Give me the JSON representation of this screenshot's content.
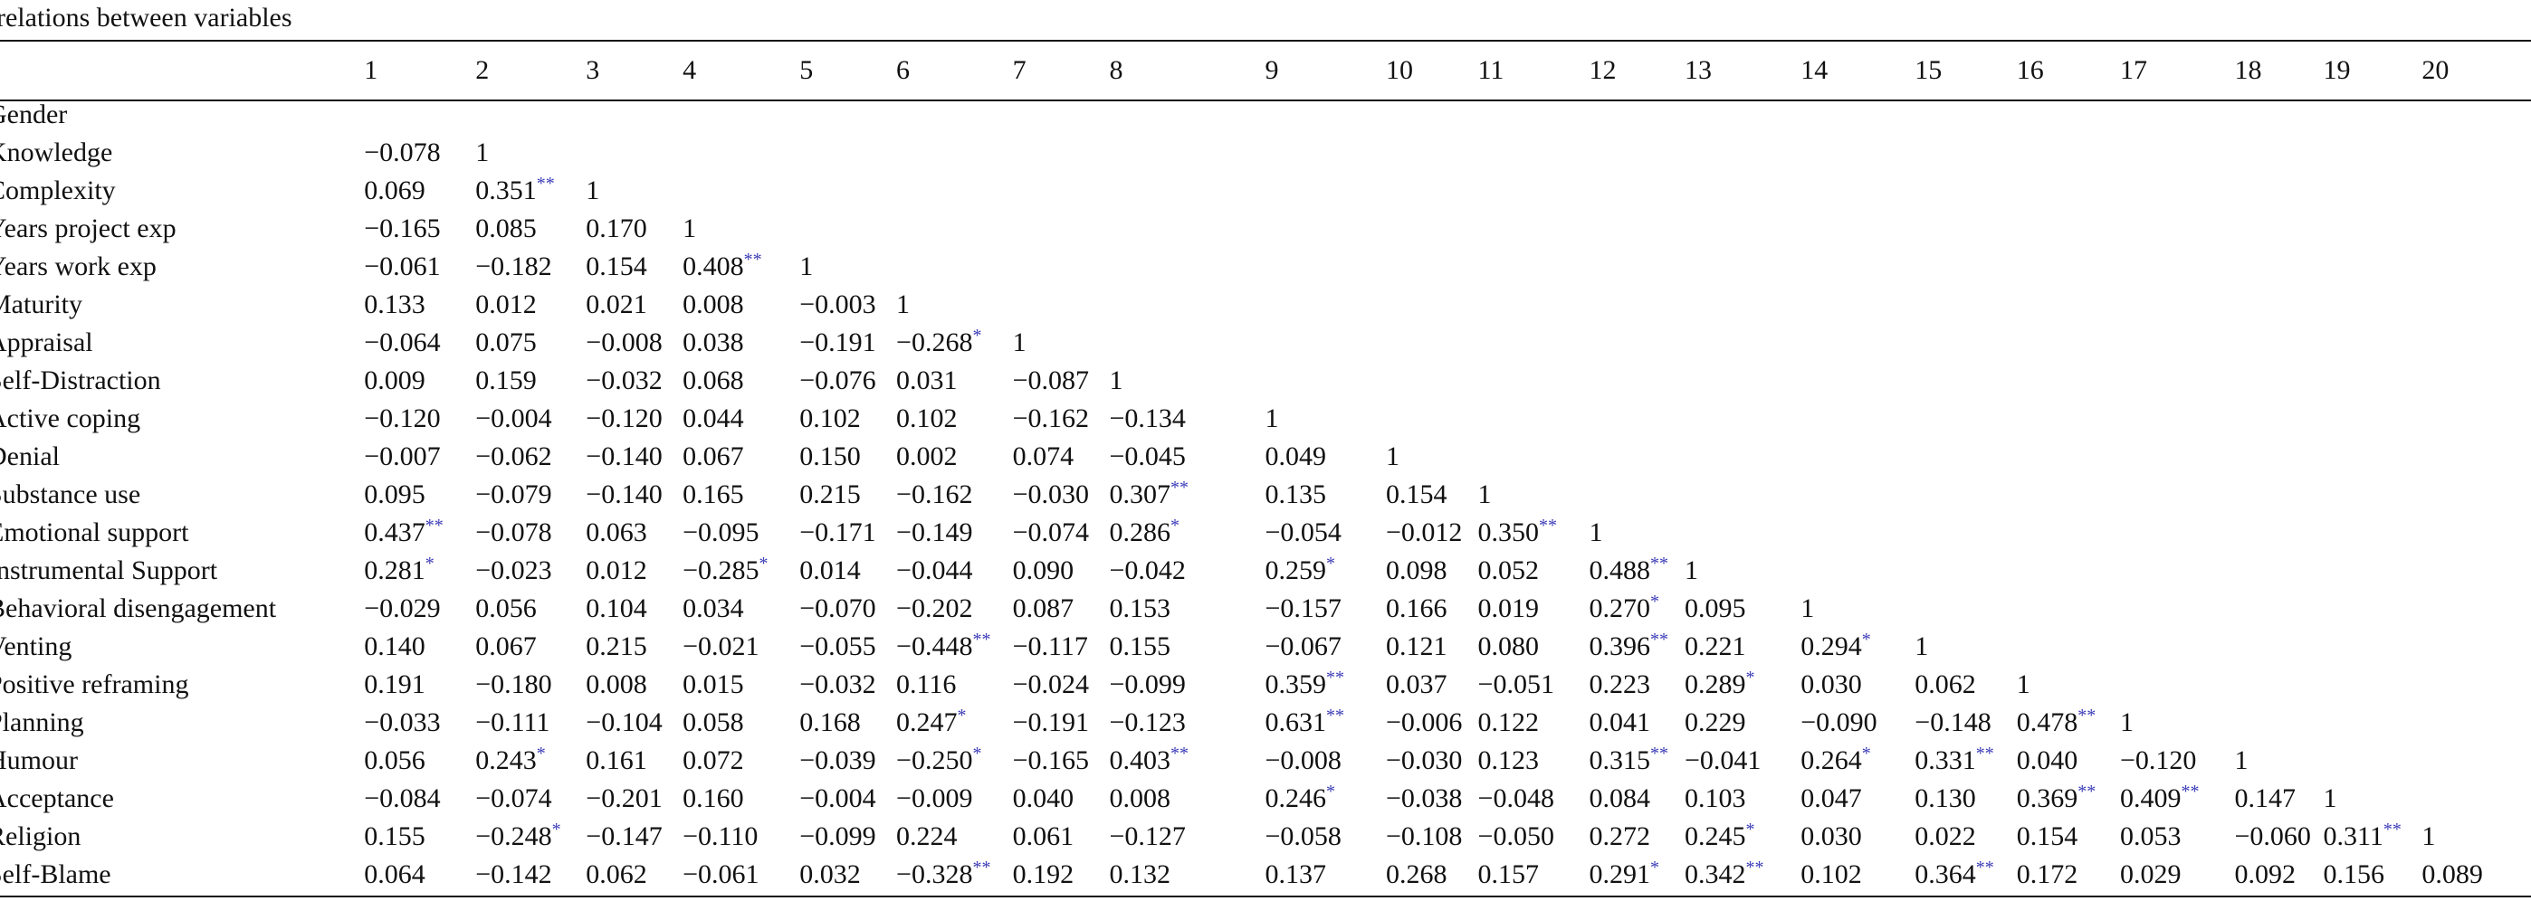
{
  "caption": "relations between variables",
  "columns": [
    "1",
    "2",
    "3",
    "4",
    "5",
    "6",
    "7",
    "8",
    "9",
    "10",
    "11",
    "12",
    "13",
    "14",
    "15",
    "16",
    "17",
    "18",
    "19",
    "20"
  ],
  "rows": [
    {
      "label": "Gender",
      "values": []
    },
    {
      "label": "Knowledge",
      "values": [
        "−0.078",
        "1"
      ]
    },
    {
      "label": "Complexity",
      "values": [
        "0.069",
        "0.351**",
        "1"
      ]
    },
    {
      "label": "Years project exp",
      "values": [
        "−0.165",
        "0.085",
        "0.170",
        "1"
      ]
    },
    {
      "label": "Years work exp",
      "values": [
        "−0.061",
        "−0.182",
        "0.154",
        "0.408**",
        "1"
      ]
    },
    {
      "label": "Maturity",
      "values": [
        "0.133",
        "0.012",
        "0.021",
        "0.008",
        "−0.003",
        "1"
      ]
    },
    {
      "label": "Appraisal",
      "values": [
        "−0.064",
        "0.075",
        "−0.008",
        "0.038",
        "−0.191",
        "−0.268*",
        "1"
      ]
    },
    {
      "label": "Self-Distraction",
      "values": [
        "0.009",
        "0.159",
        "−0.032",
        "0.068",
        "−0.076",
        "0.031",
        "−0.087",
        "1"
      ]
    },
    {
      "label": "Active coping",
      "values": [
        "−0.120",
        "−0.004",
        "−0.120",
        "0.044",
        "0.102",
        "0.102",
        "−0.162",
        "−0.134",
        "1"
      ]
    },
    {
      "label": "Denial",
      "values": [
        "−0.007",
        "−0.062",
        "−0.140",
        "0.067",
        "0.150",
        "0.002",
        "0.074",
        "−0.045",
        "0.049",
        "1"
      ]
    },
    {
      "label": "Substance use",
      "values": [
        "0.095",
        "−0.079",
        "−0.140",
        "0.165",
        "0.215",
        "−0.162",
        "−0.030",
        "0.307**",
        "0.135",
        "0.154",
        "1"
      ]
    },
    {
      "label": "Emotional support",
      "values": [
        "0.437**",
        "−0.078",
        "0.063",
        "−0.095",
        "−0.171",
        "−0.149",
        "−0.074",
        "0.286*",
        "−0.054",
        "−0.012",
        "0.350**",
        "1"
      ]
    },
    {
      "label": "Instrumental Support",
      "values": [
        "0.281*",
        "−0.023",
        "0.012",
        "−0.285*",
        "0.014",
        "−0.044",
        "0.090",
        "−0.042",
        "0.259*",
        "0.098",
        "0.052",
        "0.488**",
        "1"
      ]
    },
    {
      "label": "Behavioral disengagement",
      "values": [
        "−0.029",
        "0.056",
        "0.104",
        "0.034",
        "−0.070",
        "−0.202",
        "0.087",
        "0.153",
        "−0.157",
        "0.166",
        "0.019",
        "0.270*",
        "0.095",
        "1"
      ]
    },
    {
      "label": "Venting",
      "values": [
        "0.140",
        "0.067",
        "0.215",
        "−0.021",
        "−0.055",
        "−0.448**",
        "−0.117",
        "0.155",
        "−0.067",
        "0.121",
        "0.080",
        "0.396**",
        "0.221",
        "0.294*",
        "1"
      ]
    },
    {
      "label": "Positive reframing",
      "values": [
        "0.191",
        "−0.180",
        "0.008",
        "0.015",
        "−0.032",
        "0.116",
        "−0.024",
        "−0.099",
        "0.359**",
        "0.037",
        "−0.051",
        "0.223",
        "0.289*",
        "0.030",
        "0.062",
        "1"
      ]
    },
    {
      "label": "Planning",
      "values": [
        "−0.033",
        "−0.111",
        "−0.104",
        "0.058",
        "0.168",
        "0.247*",
        "−0.191",
        "−0.123",
        "0.631**",
        "−0.006",
        "0.122",
        "0.041",
        "0.229",
        "−0.090",
        "−0.148",
        "0.478**",
        "1"
      ]
    },
    {
      "label": "Humour",
      "values": [
        "0.056",
        "0.243*",
        "0.161",
        "0.072",
        "−0.039",
        "−0.250*",
        "−0.165",
        "0.403**",
        "−0.008",
        "−0.030",
        "0.123",
        "0.315**",
        "−0.041",
        "0.264*",
        "0.331**",
        "0.040",
        "−0.120",
        "1"
      ]
    },
    {
      "label": "Acceptance",
      "values": [
        "−0.084",
        "−0.074",
        "−0.201",
        "0.160",
        "−0.004",
        "−0.009",
        "0.040",
        "0.008",
        "0.246*",
        "−0.038",
        "−0.048",
        "0.084",
        "0.103",
        "0.047",
        "0.130",
        "0.369**",
        "0.409**",
        "0.147",
        "1"
      ]
    },
    {
      "label": "Religion",
      "values": [
        "0.155",
        "−0.248*",
        "−0.147",
        "−0.110",
        "−0.099",
        "0.224",
        "0.061",
        "−0.127",
        "−0.058",
        "−0.108",
        "−0.050",
        "0.272",
        "0.245*",
        "0.030",
        "0.022",
        "0.154",
        "0.053",
        "−0.060",
        "0.311**",
        "1"
      ]
    },
    {
      "label": "Self-Blame",
      "values": [
        "0.064",
        "−0.142",
        "0.062",
        "−0.061",
        "0.032",
        "−0.328**",
        "0.192",
        "0.132",
        "0.137",
        "0.268",
        "0.157",
        "0.291*",
        "0.342**",
        "0.102",
        "0.364**",
        "0.172",
        "0.029",
        "0.092",
        "0.156",
        "0.089"
      ]
    }
  ]
}
